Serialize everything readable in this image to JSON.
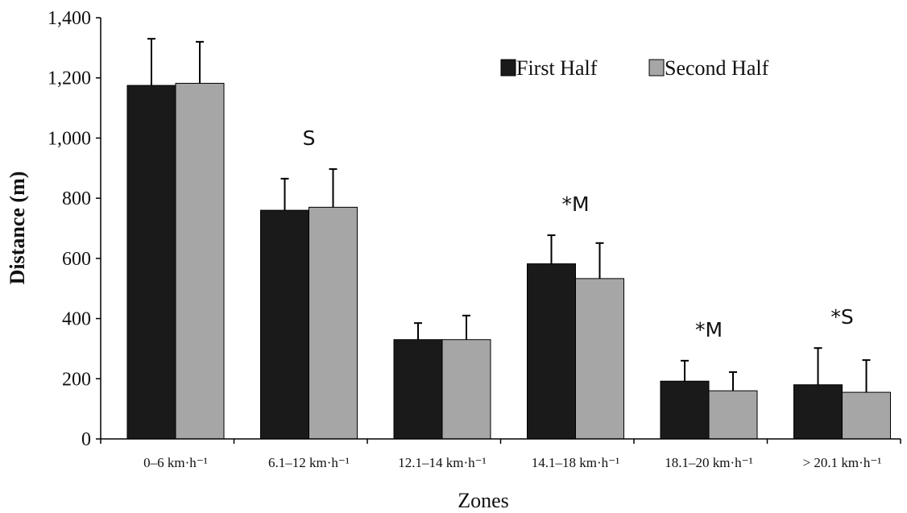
{
  "chart_data": {
    "type": "bar",
    "title": "",
    "xlabel": "Zones",
    "ylabel": "Distance (m)",
    "ylim": [
      0,
      1400
    ],
    "yticks": [
      0,
      200,
      400,
      600,
      800,
      1000,
      1200,
      1400
    ],
    "ytick_labels": [
      "0",
      "200",
      "400",
      "600",
      "800",
      "1,000",
      "1,200",
      "1,400"
    ],
    "grid": false,
    "legend_position": "top-right",
    "categories": [
      "0–6 km·h⁻¹",
      "6.1–12 km·h⁻¹",
      "12.1–14 km·h⁻¹",
      "14.1–18 km·h⁻¹",
      "18.1–20 km·h⁻¹",
      "> 20.1 km·h⁻¹"
    ],
    "series": [
      {
        "name": "First Half",
        "color": "#1a1a1a",
        "values": [
          1175,
          760,
          330,
          582,
          192,
          180
        ],
        "errors": [
          155,
          105,
          55,
          95,
          68,
          122
        ]
      },
      {
        "name": "Second Half",
        "color": "#a6a6a6",
        "values": [
          1182,
          770,
          330,
          533,
          160,
          155
        ],
        "errors": [
          138,
          127,
          80,
          118,
          62,
          107
        ]
      }
    ],
    "annotations": [
      {
        "category_index": 1,
        "text": "S"
      },
      {
        "category_index": 3,
        "text": "*M"
      },
      {
        "category_index": 4,
        "text": "*M"
      },
      {
        "category_index": 5,
        "text": "*S"
      }
    ]
  }
}
